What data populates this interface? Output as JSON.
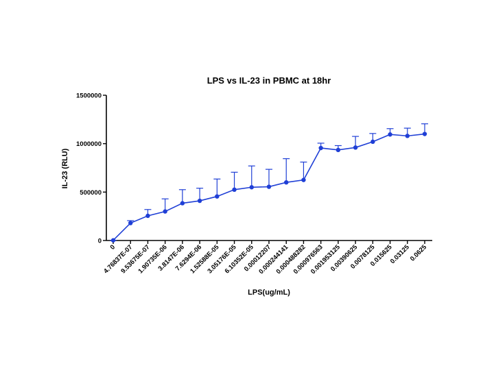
{
  "chart_data": {
    "type": "line",
    "title": "LPS vs IL-23 in PBMC at 18hr",
    "xlabel": "LPS(ug/mL)",
    "ylabel": "IL-23 (RLU)",
    "ylim": [
      0,
      1500000
    ],
    "yticks": [
      "0",
      "500000",
      "1000000",
      "1500000"
    ],
    "grid": false,
    "categories": [
      "0",
      "4.76837E-07",
      "9.53675E-07",
      "1.90735E-06",
      "3.8147E-06",
      "7.6294E-06",
      "1.52588E-05",
      "3.05176E-05",
      "6.10352E-05",
      "0.00012207",
      "0.000244141",
      "0.000488282",
      "0.000976563",
      "0.001953125",
      "0.00390625",
      "0.0078125",
      "0.015625",
      "0.03125",
      "0.0625"
    ],
    "series": [
      {
        "values": [
          2000,
          180000,
          255000,
          300000,
          385000,
          410000,
          455000,
          525000,
          550000,
          555000,
          600000,
          625000,
          955000,
          935000,
          960000,
          1020000,
          1095000,
          1080000,
          1100000
        ],
        "error_upper": [
          3000,
          205000,
          320000,
          430000,
          525000,
          540000,
          635000,
          705000,
          770000,
          735000,
          845000,
          810000,
          1005000,
          980000,
          1075000,
          1105000,
          1155000,
          1160000,
          1205000
        ]
      }
    ],
    "color": "#1f3fd6"
  }
}
